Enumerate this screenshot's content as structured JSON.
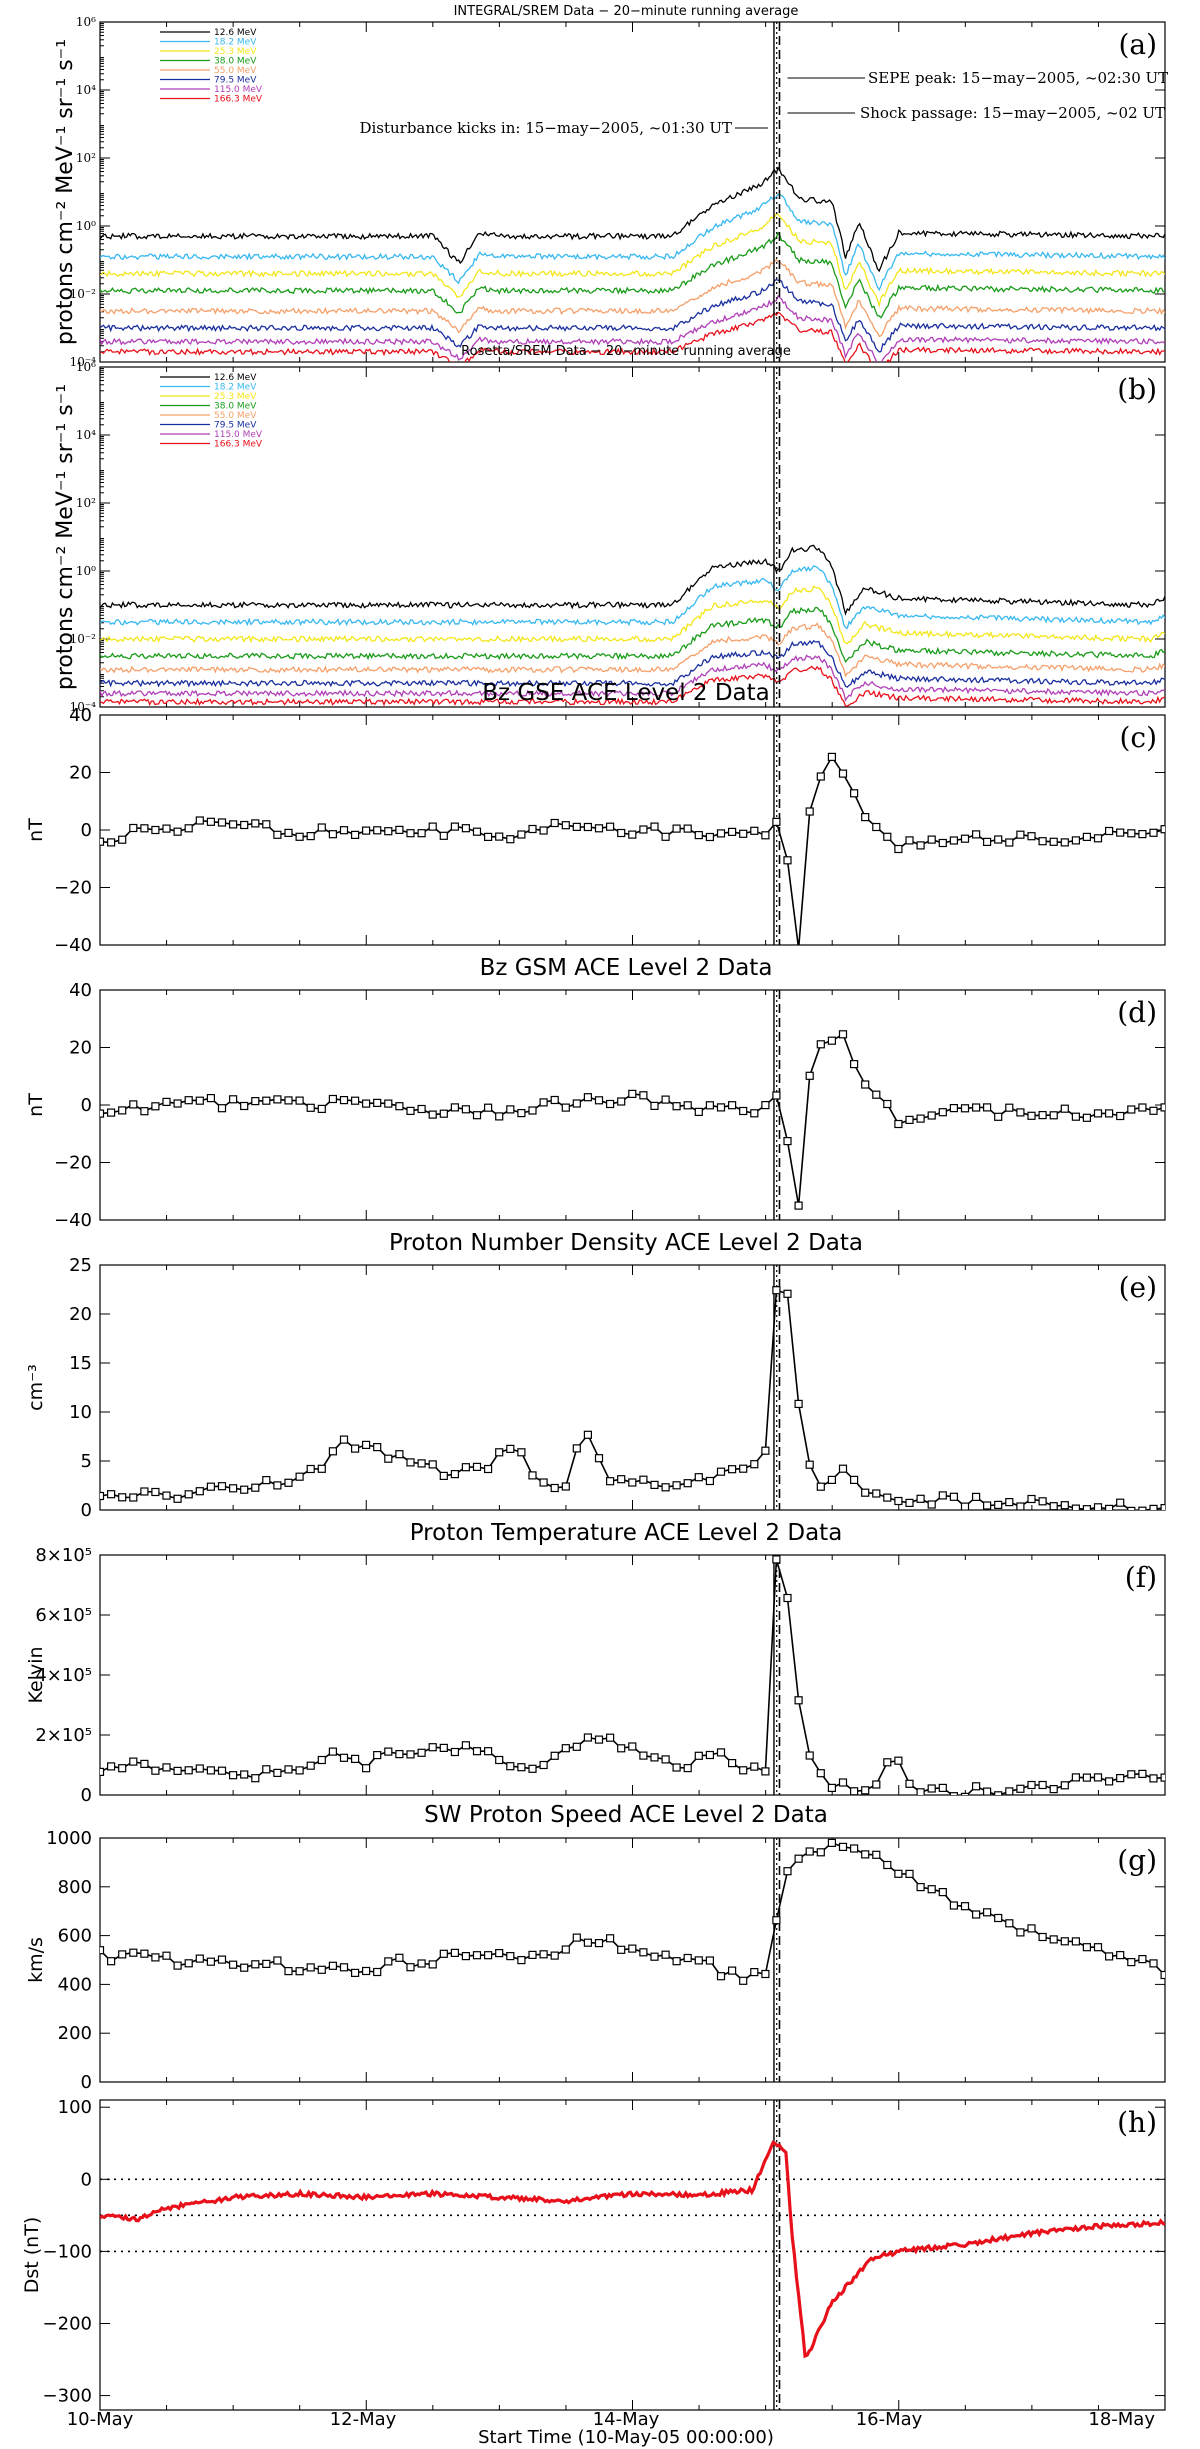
{
  "figure": {
    "x_labels": [
      "10-May",
      "12-May",
      "14-May",
      "16-May",
      "18-May"
    ],
    "x_axis_title": "Start Time (10-May-05 00:00:00)",
    "x_range_days": [
      0,
      8
    ],
    "events": {
      "disturbance_day": 5.0625,
      "shock_day": 5.0833,
      "sepe_peak_day": 5.1042
    },
    "legend_labels": [
      "12.6 MeV",
      "18.2 MeV",
      "25.3 MeV",
      "38.0 MeV",
      "55.0 MeV",
      "79.5 MeV",
      "115.0 MeV",
      "166.3 MeV"
    ],
    "legend_colors": [
      "#000000",
      "#38b8f0",
      "#f2e61b",
      "#1a9c1a",
      "#f5a06a",
      "#1a2f9e",
      "#b03fb8",
      "#e8101a"
    ]
  },
  "chart_data": [
    {
      "id": "a",
      "type": "line",
      "letter": "(a)",
      "title": "INTEGRAL/SREM Data − 20−minute running average",
      "ylabel": "protons cm⁻² MeV⁻¹ sr⁻¹ s⁻¹",
      "yscale": "log",
      "ylim_exp": [
        -4,
        6
      ],
      "tick_labels": [
        "10⁶",
        "10⁴",
        "10²",
        "10⁰",
        "10⁻²",
        "10⁻⁴"
      ],
      "annotations": {
        "sepe": "SEPE peak: 15−may−2005, ~02:30 UT",
        "shock": "Shock passage: 15−may−2005, ~02 UT",
        "disturbance": "Disturbance kicks in: 15−may−2005, ~01:30 UT"
      },
      "base_log_flux": [
        -0.3,
        -0.9,
        -1.4,
        -1.9,
        -2.5,
        -3.0,
        -3.4,
        -3.7
      ],
      "profile": [
        [
          0,
          0
        ],
        [
          2.5,
          0
        ],
        [
          2.7,
          -0.8
        ],
        [
          2.85,
          0.1
        ],
        [
          3.0,
          0
        ],
        [
          4.3,
          0
        ],
        [
          4.6,
          0.9
        ],
        [
          4.95,
          1.5
        ],
        [
          5.1,
          2.0
        ],
        [
          5.25,
          1.1
        ],
        [
          5.5,
          1.0
        ],
        [
          5.6,
          -0.6
        ],
        [
          5.7,
          0.4
        ],
        [
          5.85,
          -1.0
        ],
        [
          6.0,
          0.1
        ],
        [
          8,
          0
        ]
      ]
    },
    {
      "id": "b",
      "type": "line",
      "letter": "(b)",
      "title": "Rosetta/SREM Data − 20−minute running average",
      "ylabel": "protons cm⁻² MeV⁻¹ sr⁻¹ s⁻¹",
      "yscale": "log",
      "ylim_exp": [
        -4,
        6
      ],
      "tick_labels": [
        "10⁶",
        "10⁴",
        "10²",
        "10⁰",
        "10⁻²",
        "10⁻⁴"
      ],
      "base_log_flux": [
        -1.0,
        -1.5,
        -2.0,
        -2.5,
        -2.9,
        -3.3,
        -3.6,
        -3.85
      ],
      "profile": [
        [
          0,
          0
        ],
        [
          4.3,
          0
        ],
        [
          4.6,
          1.1
        ],
        [
          5.0,
          1.3
        ],
        [
          5.1,
          1.0
        ],
        [
          5.2,
          1.6
        ],
        [
          5.4,
          1.7
        ],
        [
          5.5,
          1.1
        ],
        [
          5.6,
          -0.2
        ],
        [
          5.75,
          0.5
        ],
        [
          6.0,
          0.2
        ],
        [
          7.9,
          0
        ],
        [
          8,
          0.2
        ]
      ]
    },
    {
      "id": "c",
      "type": "line",
      "letter": "(c)",
      "title": "Bz GSE ACE Level 2 Data",
      "ylabel": "nT",
      "ylim": [
        -40,
        40
      ],
      "yticks": [
        -40,
        -20,
        0,
        20,
        40
      ],
      "step_days": 0.0833,
      "keypoints": [
        [
          0,
          -3
        ],
        [
          0.5,
          1
        ],
        [
          1,
          2
        ],
        [
          1.5,
          -1
        ],
        [
          2,
          0
        ],
        [
          2.5,
          0
        ],
        [
          3,
          -2
        ],
        [
          3.5,
          1
        ],
        [
          4,
          0
        ],
        [
          4.5,
          -1
        ],
        [
          5.0,
          -1
        ],
        [
          5.06,
          7
        ],
        [
          5.15,
          -5
        ],
        [
          5.2,
          -25
        ],
        [
          5.25,
          -40
        ],
        [
          5.3,
          -10
        ],
        [
          5.35,
          18
        ],
        [
          5.45,
          20
        ],
        [
          5.5,
          25
        ],
        [
          5.6,
          18
        ],
        [
          5.7,
          10
        ],
        [
          5.8,
          2
        ],
        [
          6.0,
          -5
        ],
        [
          6.3,
          -3
        ],
        [
          6.6,
          -2
        ],
        [
          7,
          -3
        ],
        [
          7.5,
          -2
        ],
        [
          8,
          -1
        ]
      ]
    },
    {
      "id": "d",
      "type": "line",
      "letter": "(d)",
      "title": "Bz GSM ACE Level 2 Data",
      "ylabel": "nT",
      "ylim": [
        -40,
        40
      ],
      "yticks": [
        -40,
        -20,
        0,
        20,
        40
      ],
      "step_days": 0.0833,
      "keypoints": [
        [
          0,
          -3
        ],
        [
          0.5,
          0
        ],
        [
          1,
          1
        ],
        [
          1.5,
          0
        ],
        [
          2,
          1
        ],
        [
          2.5,
          -2
        ],
        [
          3,
          -3
        ],
        [
          3.5,
          1
        ],
        [
          4,
          2
        ],
        [
          4.5,
          -1
        ],
        [
          5.0,
          -1
        ],
        [
          5.06,
          8
        ],
        [
          5.15,
          -10
        ],
        [
          5.2,
          -20
        ],
        [
          5.25,
          -35
        ],
        [
          5.3,
          -5
        ],
        [
          5.35,
          20
        ],
        [
          5.45,
          21
        ],
        [
          5.55,
          27
        ],
        [
          5.65,
          15
        ],
        [
          5.8,
          5
        ],
        [
          6.0,
          -5
        ],
        [
          6.15,
          -7
        ],
        [
          6.3,
          -2
        ],
        [
          7,
          -3
        ],
        [
          7.5,
          -3
        ],
        [
          8,
          -1
        ]
      ]
    },
    {
      "id": "e",
      "type": "line",
      "letter": "(e)",
      "title": "Proton Number Density ACE Level 2 Data",
      "ylabel": "cm⁻³",
      "ylim": [
        0,
        25
      ],
      "yticks": [
        0,
        5,
        10,
        15,
        20,
        25
      ],
      "step_days": 0.0833,
      "keypoints": [
        [
          0,
          1
        ],
        [
          0.5,
          1.6
        ],
        [
          1,
          2.2
        ],
        [
          1.5,
          3.2
        ],
        [
          1.7,
          5
        ],
        [
          1.85,
          7
        ],
        [
          2.0,
          6.5
        ],
        [
          2.3,
          5
        ],
        [
          2.6,
          3.8
        ],
        [
          2.9,
          4.2
        ],
        [
          3.1,
          6.8
        ],
        [
          3.3,
          3.2
        ],
        [
          3.5,
          2.5
        ],
        [
          3.65,
          8.8
        ],
        [
          3.8,
          3
        ],
        [
          4.2,
          2.5
        ],
        [
          4.5,
          3.2
        ],
        [
          4.8,
          4
        ],
        [
          5.0,
          6
        ],
        [
          5.05,
          21
        ],
        [
          5.15,
          24
        ],
        [
          5.25,
          11
        ],
        [
          5.35,
          3
        ],
        [
          5.5,
          2.5
        ],
        [
          5.6,
          4.5
        ],
        [
          5.7,
          2.5
        ],
        [
          5.9,
          0.8
        ],
        [
          6.3,
          1
        ],
        [
          7,
          0.5
        ],
        [
          8,
          0.5
        ]
      ]
    },
    {
      "id": "f",
      "type": "line",
      "letter": "(f)",
      "title": "Proton Temperature ACE Level 2 Data",
      "ylabel": "Kelvin",
      "ylim": [
        0,
        800000
      ],
      "yticks": [
        0,
        200000,
        400000,
        600000,
        800000
      ],
      "tick_labels": [
        "0",
        "2×10⁵",
        "4×10⁵",
        "6×10⁵",
        "8×10⁵"
      ],
      "step_days": 0.0833,
      "keypoints": [
        [
          0,
          60000
        ],
        [
          0.2,
          110000
        ],
        [
          0.5,
          80000
        ],
        [
          1,
          60000
        ],
        [
          1.5,
          90000
        ],
        [
          1.7,
          130000
        ],
        [
          2.0,
          100000
        ],
        [
          2.3,
          150000
        ],
        [
          2.6,
          170000
        ],
        [
          3.0,
          130000
        ],
        [
          3.2,
          90000
        ],
        [
          3.5,
          150000
        ],
        [
          3.7,
          200000
        ],
        [
          3.9,
          160000
        ],
        [
          4.2,
          130000
        ],
        [
          4.4,
          100000
        ],
        [
          4.6,
          140000
        ],
        [
          5.0,
          60000
        ],
        [
          5.08,
          780000
        ],
        [
          5.15,
          720000
        ],
        [
          5.25,
          320000
        ],
        [
          5.35,
          100000
        ],
        [
          5.5,
          30000
        ],
        [
          5.8,
          30000
        ],
        [
          5.95,
          150000
        ],
        [
          6.1,
          20000
        ],
        [
          6.5,
          10000
        ],
        [
          7,
          20000
        ],
        [
          7.5,
          60000
        ],
        [
          8,
          50000
        ]
      ]
    },
    {
      "id": "g",
      "type": "line",
      "letter": "(g)",
      "title": "SW Proton Speed ACE Level 2 Data",
      "ylabel": "km/s",
      "ylim": [
        0,
        1000
      ],
      "yticks": [
        0,
        200,
        400,
        600,
        800,
        1000
      ],
      "step_days": 0.0833,
      "keypoints": [
        [
          0,
          520
        ],
        [
          1,
          480
        ],
        [
          2,
          470
        ],
        [
          2.5,
          500
        ],
        [
          3,
          540
        ],
        [
          3.3,
          500
        ],
        [
          3.7,
          600
        ],
        [
          4,
          530
        ],
        [
          4.5,
          500
        ],
        [
          4.8,
          420
        ],
        [
          5.0,
          430
        ],
        [
          5.05,
          500
        ],
        [
          5.1,
          800
        ],
        [
          5.2,
          900
        ],
        [
          5.5,
          970
        ],
        [
          5.8,
          920
        ],
        [
          6.5,
          720
        ],
        [
          7,
          620
        ],
        [
          7.5,
          540
        ],
        [
          8,
          450
        ]
      ]
    },
    {
      "id": "h",
      "type": "line",
      "letter": "(h)",
      "title": "",
      "ylabel": "Dst (nT)",
      "ylim": [
        -320,
        110
      ],
      "yticks": [
        -300,
        -200,
        -100,
        0,
        100
      ],
      "reference_lines": [
        0,
        -50,
        -100
      ],
      "keypoints": [
        [
          0,
          -50
        ],
        [
          0.3,
          -55
        ],
        [
          0.5,
          -40
        ],
        [
          1,
          -25
        ],
        [
          1.5,
          -20
        ],
        [
          2,
          -25
        ],
        [
          2.5,
          -20
        ],
        [
          3,
          -25
        ],
        [
          3.5,
          -30
        ],
        [
          4,
          -20
        ],
        [
          4.5,
          -22
        ],
        [
          4.9,
          -15
        ],
        [
          5.05,
          50
        ],
        [
          5.15,
          40
        ],
        [
          5.2,
          -80
        ],
        [
          5.3,
          -250
        ],
        [
          5.5,
          -170
        ],
        [
          5.8,
          -110
        ],
        [
          6.0,
          -100
        ],
        [
          6.5,
          -90
        ],
        [
          7,
          -75
        ],
        [
          7.5,
          -65
        ],
        [
          8,
          -60
        ]
      ]
    }
  ]
}
